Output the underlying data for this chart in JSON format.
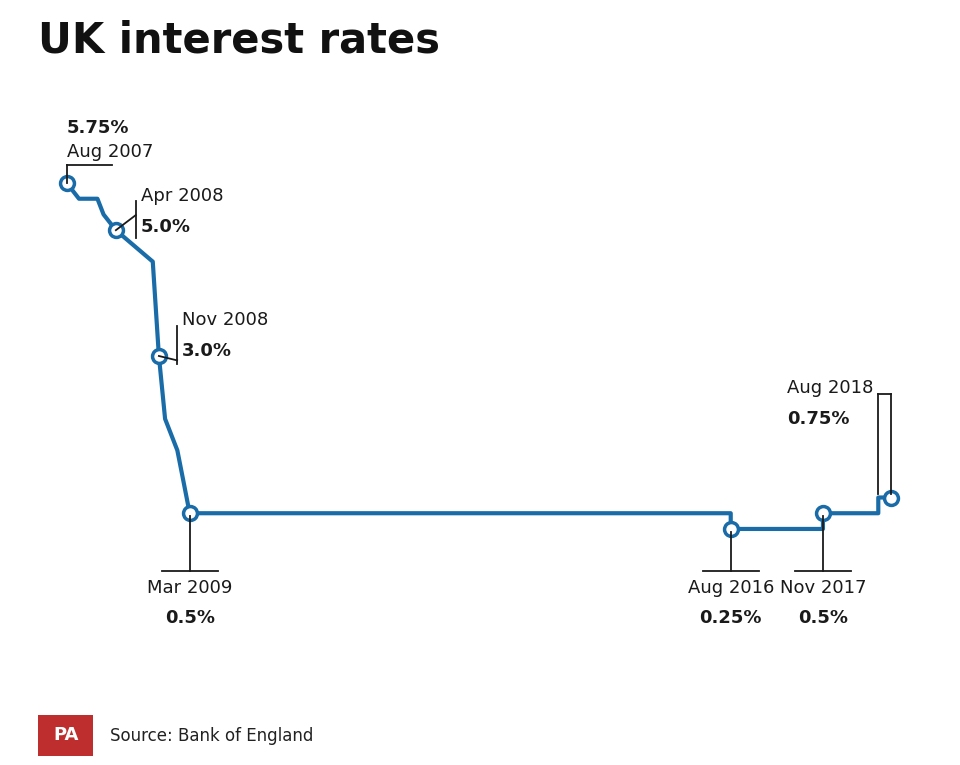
{
  "title": "UK interest rates",
  "source": "Source: Bank of England",
  "line_color": "#1a6ca8",
  "line_width": 3.0,
  "background_color": "#ffffff",
  "rates": [
    [
      2007.583,
      5.75
    ],
    [
      2007.667,
      5.625
    ],
    [
      2007.75,
      5.5
    ],
    [
      2007.833,
      5.5
    ],
    [
      2007.917,
      5.5
    ],
    [
      2008.0,
      5.5
    ],
    [
      2008.083,
      5.25
    ],
    [
      2008.25,
      5.0
    ],
    [
      2008.75,
      4.5
    ],
    [
      2008.833,
      3.0
    ],
    [
      2008.917,
      2.0
    ],
    [
      2009.083,
      1.5
    ],
    [
      2009.167,
      1.0
    ],
    [
      2009.25,
      0.5
    ],
    [
      2016.583,
      0.5
    ],
    [
      2016.583,
      0.25
    ],
    [
      2017.833,
      0.25
    ],
    [
      2017.833,
      0.5
    ],
    [
      2018.583,
      0.5
    ],
    [
      2018.583,
      0.75
    ],
    [
      2018.75,
      0.75
    ]
  ],
  "key_points": [
    [
      2007.583,
      5.75
    ],
    [
      2008.25,
      5.0
    ],
    [
      2008.833,
      3.0
    ],
    [
      2009.25,
      0.5
    ],
    [
      2016.583,
      0.25
    ],
    [
      2017.833,
      0.5
    ],
    [
      2018.75,
      0.75
    ]
  ],
  "xlim": [
    2007.2,
    2019.3
  ],
  "ylim": [
    -1.8,
    7.2
  ],
  "title_fontsize": 30,
  "label_fontsize": 13,
  "value_fontsize": 13,
  "pa_color": "#bf2e2e",
  "pa_text": "PA",
  "annotation_color": "#1a1a1a",
  "bracket_color": "#1a1a1a"
}
